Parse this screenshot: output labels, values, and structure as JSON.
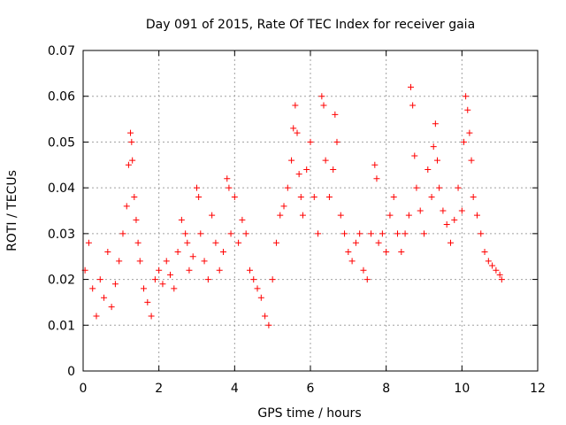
{
  "chart_data": {
    "type": "scatter",
    "title": "Day 091 of 2015, Rate Of TEC Index for receiver gaia",
    "xlabel": "GPS time / hours",
    "ylabel": "ROTI / TECUs",
    "xlim": [
      0,
      12
    ],
    "ylim": [
      0,
      0.07
    ],
    "x_ticks": [
      0,
      2,
      4,
      6,
      8,
      10,
      12
    ],
    "x_tick_labels": [
      "0",
      "2",
      "4",
      "6",
      "8",
      "10",
      "12"
    ],
    "y_ticks": [
      0,
      0.01,
      0.02,
      0.03,
      0.04,
      0.05,
      0.06,
      0.07
    ],
    "y_tick_labels": [
      "0",
      "0.01",
      "0.02",
      "0.03",
      "0.04",
      "0.05",
      "0.06",
      "0.07"
    ],
    "grid": true,
    "marker": "+",
    "series": [
      {
        "name": "ROTI",
        "color": "#ff0000",
        "x": [
          0.05,
          0.15,
          0.25,
          0.35,
          0.45,
          0.55,
          0.65,
          0.75,
          0.85,
          0.95,
          1.05,
          1.15,
          1.2,
          1.25,
          1.28,
          1.3,
          1.35,
          1.4,
          1.45,
          1.5,
          1.6,
          1.7,
          1.8,
          1.9,
          2.0,
          2.1,
          2.2,
          2.3,
          2.4,
          2.5,
          2.6,
          2.7,
          2.75,
          2.8,
          2.9,
          3.0,
          3.05,
          3.1,
          3.2,
          3.3,
          3.4,
          3.5,
          3.6,
          3.7,
          3.8,
          3.85,
          3.9,
          4.0,
          4.1,
          4.2,
          4.3,
          4.4,
          4.5,
          4.6,
          4.7,
          4.8,
          4.9,
          5.0,
          5.1,
          5.2,
          5.3,
          5.4,
          5.5,
          5.55,
          5.6,
          5.65,
          5.7,
          5.75,
          5.8,
          5.9,
          6.0,
          6.1,
          6.2,
          6.3,
          6.35,
          6.4,
          6.5,
          6.6,
          6.65,
          6.7,
          6.8,
          6.9,
          7.0,
          7.1,
          7.2,
          7.3,
          7.4,
          7.5,
          7.6,
          7.7,
          7.75,
          7.8,
          7.9,
          8.0,
          8.1,
          8.2,
          8.3,
          8.4,
          8.5,
          8.6,
          8.65,
          8.7,
          8.75,
          8.8,
          8.9,
          9.0,
          9.1,
          9.2,
          9.25,
          9.3,
          9.35,
          9.4,
          9.5,
          9.6,
          9.7,
          9.8,
          9.9,
          10.0,
          10.05,
          10.1,
          10.15,
          10.2,
          10.25,
          10.3,
          10.4,
          10.5,
          10.6,
          10.7,
          10.8,
          10.9,
          11.0,
          11.05
        ],
        "y": [
          0.022,
          0.028,
          0.018,
          0.012,
          0.02,
          0.016,
          0.026,
          0.014,
          0.019,
          0.024,
          0.03,
          0.036,
          0.045,
          0.052,
          0.05,
          0.046,
          0.038,
          0.033,
          0.028,
          0.024,
          0.018,
          0.015,
          0.012,
          0.02,
          0.022,
          0.019,
          0.024,
          0.021,
          0.018,
          0.026,
          0.033,
          0.03,
          0.028,
          0.022,
          0.025,
          0.04,
          0.038,
          0.03,
          0.024,
          0.02,
          0.034,
          0.028,
          0.022,
          0.026,
          0.042,
          0.04,
          0.03,
          0.038,
          0.028,
          0.033,
          0.03,
          0.022,
          0.02,
          0.018,
          0.016,
          0.012,
          0.01,
          0.02,
          0.028,
          0.034,
          0.036,
          0.04,
          0.046,
          0.053,
          0.058,
          0.052,
          0.043,
          0.038,
          0.034,
          0.044,
          0.05,
          0.038,
          0.03,
          0.06,
          0.058,
          0.046,
          0.038,
          0.044,
          0.056,
          0.05,
          0.034,
          0.03,
          0.026,
          0.024,
          0.028,
          0.03,
          0.022,
          0.02,
          0.03,
          0.045,
          0.042,
          0.028,
          0.03,
          0.026,
          0.034,
          0.038,
          0.03,
          0.026,
          0.03,
          0.034,
          0.062,
          0.058,
          0.047,
          0.04,
          0.035,
          0.03,
          0.044,
          0.038,
          0.049,
          0.054,
          0.046,
          0.04,
          0.035,
          0.032,
          0.028,
          0.033,
          0.04,
          0.035,
          0.05,
          0.06,
          0.057,
          0.052,
          0.046,
          0.038,
          0.034,
          0.03,
          0.026,
          0.024,
          0.023,
          0.022,
          0.021,
          0.02
        ]
      }
    ]
  }
}
